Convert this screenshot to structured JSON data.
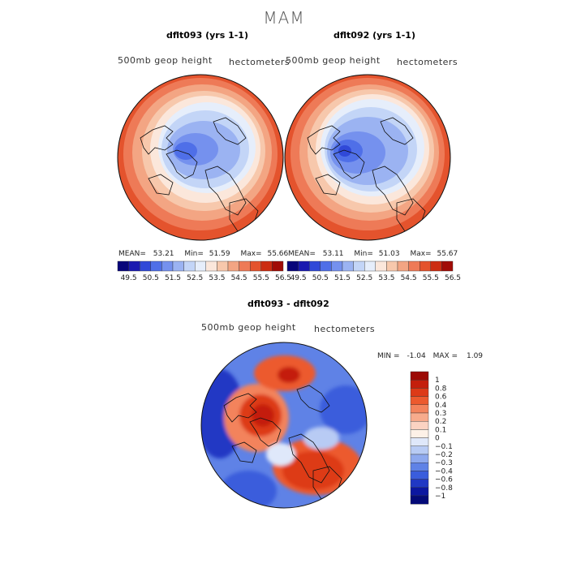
{
  "page_title": "MAM",
  "chart_data": [
    {
      "type": "filled-contour-map",
      "title": "dflt093 (yrs 1-1)",
      "field_label": "500mb geop height",
      "units": "hectometers",
      "stats": {
        "mean_label": "MEAN=",
        "mean": "53.21",
        "min_label": "Min=",
        "min": "51.59",
        "max_label": "Max=",
        "max": "55.66"
      },
      "colorbar_ticks": [
        "49.5",
        "50.5",
        "51.5",
        "52.5",
        "53.5",
        "54.5",
        "55.5",
        "56.5"
      ],
      "colorbar_colors": [
        "#08057a",
        "#1a1ab0",
        "#3049d8",
        "#4f6fe8",
        "#7591ee",
        "#9bb3f2",
        "#c3d5f7",
        "#e6eefb",
        "#fbe7db",
        "#f7c8ac",
        "#f3a583",
        "#ee7a57",
        "#e4532d",
        "#cc2d12",
        "#a10c06"
      ]
    },
    {
      "type": "filled-contour-map",
      "title": "dflt092 (yrs 1-1)",
      "field_label": "500mb geop height",
      "units": "hectometers",
      "stats": {
        "mean_label": "MEAN=",
        "mean": "53.11",
        "min_label": "Min=",
        "min": "51.03",
        "max_label": "Max=",
        "max": "55.67"
      },
      "colorbar_ticks": [
        "49.5",
        "50.5",
        "51.5",
        "52.5",
        "53.5",
        "54.5",
        "55.5",
        "56.5"
      ],
      "colorbar_colors": [
        "#08057a",
        "#1a1ab0",
        "#3049d8",
        "#4f6fe8",
        "#7591ee",
        "#9bb3f2",
        "#c3d5f7",
        "#e6eefb",
        "#fbe7db",
        "#f7c8ac",
        "#f3a583",
        "#ee7a57",
        "#e4532d",
        "#cc2d12",
        "#a10c06"
      ]
    },
    {
      "type": "filled-contour-map",
      "title": "dflt093 - dflt092",
      "field_label": "500mb geop height",
      "units": "hectometers",
      "stats": {
        "min_label": "MIN =",
        "min": "-1.04",
        "max_label": "MAX =",
        "max": "1.09"
      },
      "colorbar_ticks": [
        "1",
        "0.8",
        "0.6",
        "0.4",
        "0.3",
        "0.2",
        "0.1",
        "0",
        "−0.1",
        "−0.2",
        "−0.3",
        "−0.4",
        "−0.6",
        "−0.8",
        "−1"
      ],
      "colorbar_colors": [
        "#9c0a05",
        "#c41f0c",
        "#dd3a17",
        "#ec5a2e",
        "#f3835c",
        "#f7ab8c",
        "#fbd3c2",
        "#fdf1e7",
        "#dfe8fa",
        "#b8cbf4",
        "#8ea9ee",
        "#5f82e6",
        "#3a5ddc",
        "#2038c4",
        "#0c17a0",
        "#040a78"
      ]
    }
  ]
}
